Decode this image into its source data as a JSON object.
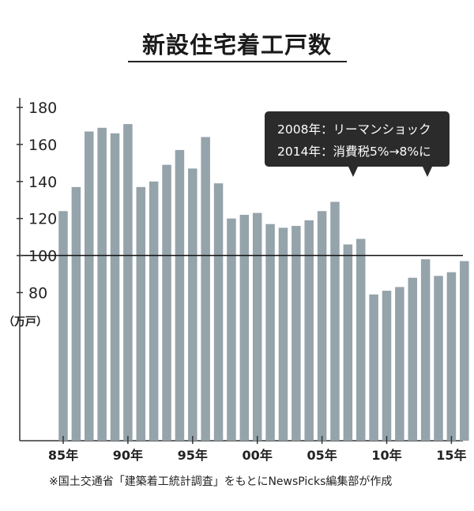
{
  "title": "新設住宅着工戸数",
  "source_note": "※国土交通省「建築着工統計調査」をもとにNewsPicks編集部が作成",
  "callout": {
    "line1": "2008年：リーマンショック",
    "line2": "2014年：消費税5%→8%に"
  },
  "chart_data": {
    "type": "bar",
    "title": "新設住宅着工戸数",
    "ylabel": "（万戸）",
    "xlabel": "",
    "ylim": [
      0,
      180
    ],
    "yticks": [
      80,
      100,
      120,
      140,
      160,
      180
    ],
    "reference_line": 100,
    "bar_color": "#95a3ab",
    "categories": [
      1985,
      1986,
      1987,
      1988,
      1989,
      1990,
      1991,
      1992,
      1993,
      1994,
      1995,
      1996,
      1997,
      1998,
      1999,
      2000,
      2001,
      2002,
      2003,
      2004,
      2005,
      2006,
      2007,
      2008,
      2009,
      2010,
      2011,
      2012,
      2013,
      2014,
      2015,
      2016
    ],
    "values": [
      124,
      137,
      167,
      169,
      166,
      171,
      137,
      140,
      149,
      157,
      147,
      164,
      139,
      120,
      122,
      123,
      117,
      115,
      116,
      119,
      124,
      129,
      106,
      109,
      79,
      81,
      83,
      88,
      98,
      89,
      91,
      97
    ],
    "xtick_labels": [
      {
        "year": 1985,
        "label": "85年"
      },
      {
        "year": 1990,
        "label": "90年"
      },
      {
        "year": 1995,
        "label": "95年"
      },
      {
        "year": 2000,
        "label": "00年"
      },
      {
        "year": 2005,
        "label": "05年"
      },
      {
        "year": 2010,
        "label": "10年"
      },
      {
        "year": 2015,
        "label": "15年"
      }
    ]
  }
}
